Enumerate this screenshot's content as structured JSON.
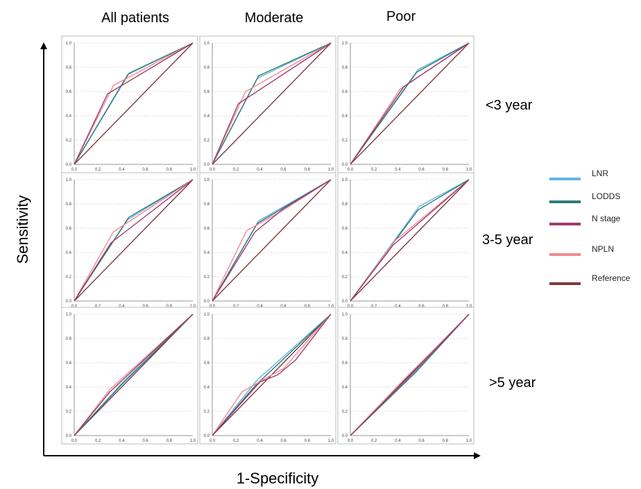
{
  "labels": {
    "col_titles": [
      "All patients",
      "Moderate",
      "Poor"
    ],
    "row_titles": [
      "<3 year",
      "3-5 year",
      ">5 year"
    ],
    "y_axis": "Sensitivity",
    "x_axis": "1-Specificity"
  },
  "colors": {
    "LNR": "#62b3e3",
    "LODDS": "#2e7a78",
    "N stage": "#a03a6d",
    "NPLN": "#f08a8e",
    "Reference": "#7d3a3c",
    "grid": "#cfcfcf",
    "frame": "#bdbdbd",
    "axis": "#000000"
  },
  "chart_data": [
    {
      "type": "line",
      "panel": "All patients, <3 year",
      "xlim": [
        0,
        1
      ],
      "ylim": [
        0,
        1
      ],
      "x_ticks": [
        "0.0",
        "0.2",
        "0.4",
        "0.6",
        "0.8",
        "1.0"
      ],
      "y_ticks": [
        "0.0",
        "0.2",
        "0.4",
        "0.6",
        "0.8",
        "1.0"
      ],
      "series": [
        {
          "name": "LNR",
          "points": [
            [
              0,
              0
            ],
            [
              0.45,
              0.74
            ],
            [
              1,
              1
            ]
          ]
        },
        {
          "name": "LODDS",
          "points": [
            [
              0,
              0
            ],
            [
              0.46,
              0.75
            ],
            [
              1,
              1
            ]
          ]
        },
        {
          "name": "N stage",
          "points": [
            [
              0,
              0
            ],
            [
              0.28,
              0.58
            ],
            [
              1,
              1
            ]
          ]
        },
        {
          "name": "NPLN",
          "points": [
            [
              0,
              0
            ],
            [
              0.33,
              0.65
            ],
            [
              1,
              1
            ]
          ]
        },
        {
          "name": "Reference",
          "points": [
            [
              0,
              0
            ],
            [
              1,
              1
            ]
          ]
        }
      ]
    },
    {
      "type": "line",
      "panel": "Moderate, <3 year",
      "xlim": [
        0,
        1
      ],
      "ylim": [
        0,
        1
      ],
      "x_ticks": [
        "0.0",
        "0.2",
        "0.4",
        "0.6",
        "0.8",
        "1.0"
      ],
      "y_ticks": [
        "0.0",
        "0.2",
        "0.4",
        "0.6",
        "0.8",
        "1.0"
      ],
      "series": [
        {
          "name": "LNR",
          "points": [
            [
              0,
              0
            ],
            [
              0.38,
              0.71
            ],
            [
              1,
              1
            ]
          ]
        },
        {
          "name": "LODDS",
          "points": [
            [
              0,
              0
            ],
            [
              0.39,
              0.73
            ],
            [
              1,
              1
            ]
          ]
        },
        {
          "name": "N stage",
          "points": [
            [
              0,
              0
            ],
            [
              0.22,
              0.5
            ],
            [
              1,
              1
            ]
          ]
        },
        {
          "name": "NPLN",
          "points": [
            [
              0,
              0
            ],
            [
              0.28,
              0.6
            ],
            [
              1,
              1
            ]
          ]
        },
        {
          "name": "Reference",
          "points": [
            [
              0,
              0
            ],
            [
              1,
              1
            ]
          ]
        }
      ]
    },
    {
      "type": "line",
      "panel": "Poor, <3 year",
      "xlim": [
        0,
        1
      ],
      "ylim": [
        0,
        1
      ],
      "x_ticks": [
        "0.0",
        "0.2",
        "0.4",
        "0.6",
        "0.8",
        "1.0"
      ],
      "y_ticks": [
        "0.0",
        "0.2",
        "0.4",
        "0.6",
        "0.8",
        "1.0"
      ],
      "series": [
        {
          "name": "LNR",
          "points": [
            [
              0,
              0
            ],
            [
              0.57,
              0.78
            ],
            [
              1,
              1
            ]
          ]
        },
        {
          "name": "LODDS",
          "points": [
            [
              0,
              0
            ],
            [
              0.56,
              0.76
            ],
            [
              1,
              1
            ]
          ]
        },
        {
          "name": "N stage",
          "points": [
            [
              0,
              0
            ],
            [
              0.45,
              0.64
            ],
            [
              1,
              1
            ]
          ]
        },
        {
          "name": "NPLN",
          "points": [
            [
              0,
              0
            ],
            [
              0.42,
              0.62
            ],
            [
              1,
              1
            ]
          ]
        },
        {
          "name": "Reference",
          "points": [
            [
              0,
              0
            ],
            [
              1,
              1
            ]
          ]
        }
      ]
    },
    {
      "type": "line",
      "panel": "All patients, 3-5 year",
      "xlim": [
        0,
        1
      ],
      "ylim": [
        0,
        1
      ],
      "x_ticks": [
        "0.0",
        "0.2",
        "0.4",
        "0.6",
        "0.8",
        "1.0"
      ],
      "y_ticks": [
        "0.0",
        "0.2",
        "0.4",
        "0.6",
        "0.8",
        "1.0"
      ],
      "series": [
        {
          "name": "LNR",
          "points": [
            [
              0,
              0
            ],
            [
              0.45,
              0.67
            ],
            [
              1,
              1
            ]
          ]
        },
        {
          "name": "LODDS",
          "points": [
            [
              0,
              0
            ],
            [
              0.46,
              0.69
            ],
            [
              1,
              1
            ]
          ]
        },
        {
          "name": "N stage",
          "points": [
            [
              0,
              0
            ],
            [
              0.31,
              0.48
            ],
            [
              1,
              1
            ]
          ]
        },
        {
          "name": "NPLN",
          "points": [
            [
              0,
              0
            ],
            [
              0.33,
              0.57
            ],
            [
              1,
              1
            ]
          ]
        },
        {
          "name": "Reference",
          "points": [
            [
              0,
              0
            ],
            [
              1,
              1
            ]
          ]
        }
      ]
    },
    {
      "type": "line",
      "panel": "Moderate, 3-5 year",
      "xlim": [
        0,
        1
      ],
      "ylim": [
        0,
        1
      ],
      "x_ticks": [
        "0.0",
        "0.2",
        "0.4",
        "0.6",
        "0.8",
        "1.0"
      ],
      "y_ticks": [
        "0.0",
        "0.2",
        "0.4",
        "0.6",
        "0.8",
        "1.0"
      ],
      "series": [
        {
          "name": "LNR",
          "points": [
            [
              0,
              0
            ],
            [
              0.39,
              0.66
            ],
            [
              1,
              1
            ]
          ]
        },
        {
          "name": "LODDS",
          "points": [
            [
              0,
              0
            ],
            [
              0.38,
              0.64
            ],
            [
              1,
              1
            ]
          ]
        },
        {
          "name": "N stage",
          "points": [
            [
              0,
              0
            ],
            [
              0.36,
              0.57
            ],
            [
              0.6,
              0.76
            ],
            [
              1,
              1
            ]
          ]
        },
        {
          "name": "NPLN",
          "points": [
            [
              0,
              0
            ],
            [
              0.29,
              0.58
            ],
            [
              0.6,
              0.75
            ],
            [
              1,
              1
            ]
          ]
        },
        {
          "name": "Reference",
          "points": [
            [
              0,
              0
            ],
            [
              1,
              1
            ]
          ]
        }
      ]
    },
    {
      "type": "line",
      "panel": "Poor, 3-5 year",
      "xlim": [
        0,
        1
      ],
      "ylim": [
        0,
        1
      ],
      "x_ticks": [
        "0.0",
        "0.2",
        "0.4",
        "0.6",
        "0.8",
        "1.0"
      ],
      "y_ticks": [
        "0.0",
        "0.2",
        "0.4",
        "0.6",
        "0.8",
        "1.0"
      ],
      "series": [
        {
          "name": "LNR",
          "points": [
            [
              0,
              0
            ],
            [
              0.58,
              0.78
            ],
            [
              1,
              1
            ]
          ]
        },
        {
          "name": "LODDS",
          "points": [
            [
              0,
              0
            ],
            [
              0.57,
              0.75
            ],
            [
              1,
              1
            ]
          ]
        },
        {
          "name": "N stage",
          "points": [
            [
              0,
              0
            ],
            [
              0.36,
              0.46
            ],
            [
              1,
              1
            ]
          ]
        },
        {
          "name": "NPLN",
          "points": [
            [
              0,
              0
            ],
            [
              0.38,
              0.5
            ],
            [
              1,
              1
            ]
          ]
        },
        {
          "name": "Reference",
          "points": [
            [
              0,
              0
            ],
            [
              1,
              1
            ]
          ]
        }
      ]
    },
    {
      "type": "line",
      "panel": "All patients, >5 year",
      "xlim": [
        0,
        1
      ],
      "ylim": [
        0,
        1
      ],
      "x_ticks": [
        "0.0",
        "0.2",
        "0.4",
        "0.6",
        "0.8",
        "1.0"
      ],
      "y_ticks": [
        "0.0",
        "0.2",
        "0.4",
        "0.6",
        "0.8",
        "1.0"
      ],
      "series": [
        {
          "name": "LNR",
          "points": [
            [
              0,
              0
            ],
            [
              0.42,
              0.45
            ],
            [
              1,
              1
            ]
          ]
        },
        {
          "name": "LODDS",
          "points": [
            [
              0,
              0
            ],
            [
              0.4,
              0.42
            ],
            [
              1,
              1
            ]
          ]
        },
        {
          "name": "N stage",
          "points": [
            [
              0,
              0
            ],
            [
              0.3,
              0.36
            ],
            [
              1,
              1
            ]
          ]
        },
        {
          "name": "NPLN",
          "points": [
            [
              0,
              0
            ],
            [
              0.3,
              0.38
            ],
            [
              1,
              1
            ]
          ]
        },
        {
          "name": "Reference",
          "points": [
            [
              0,
              0
            ],
            [
              1,
              1
            ]
          ]
        }
      ]
    },
    {
      "type": "line",
      "panel": "Moderate, >5 year",
      "xlim": [
        0,
        1
      ],
      "ylim": [
        0,
        1
      ],
      "x_ticks": [
        "0.0",
        "0.2",
        "0.4",
        "0.6",
        "0.8",
        "1.0"
      ],
      "y_ticks": [
        "0.0",
        "0.2",
        "0.4",
        "0.6",
        "0.8",
        "1.0"
      ],
      "series": [
        {
          "name": "LNR",
          "points": [
            [
              0,
              0
            ],
            [
              0.38,
              0.46
            ],
            [
              1,
              1
            ]
          ]
        },
        {
          "name": "LODDS",
          "points": [
            [
              0,
              0
            ],
            [
              0.36,
              0.41
            ],
            [
              1,
              1
            ]
          ]
        },
        {
          "name": "N stage",
          "points": [
            [
              0,
              0
            ],
            [
              0.4,
              0.44
            ],
            [
              0.55,
              0.5
            ],
            [
              0.7,
              0.62
            ],
            [
              1,
              1
            ]
          ]
        },
        {
          "name": "NPLN",
          "points": [
            [
              0,
              0
            ],
            [
              0.25,
              0.36
            ],
            [
              0.5,
              0.5
            ],
            [
              0.6,
              0.55
            ],
            [
              1,
              1
            ]
          ]
        },
        {
          "name": "Reference",
          "points": [
            [
              0,
              0
            ],
            [
              1,
              1
            ]
          ]
        }
      ]
    },
    {
      "type": "line",
      "panel": "Poor, >5 year",
      "xlim": [
        0,
        1
      ],
      "ylim": [
        0,
        1
      ],
      "x_ticks": [
        "0.0",
        "0.2",
        "0.4",
        "0.6",
        "0.8",
        "1.0"
      ],
      "y_ticks": [
        "0.0",
        "0.2",
        "0.4",
        "0.6",
        "0.8",
        "1.0"
      ],
      "series": [
        {
          "name": "LNR",
          "points": [
            [
              0,
              0
            ],
            [
              0.55,
              0.53
            ],
            [
              1,
              1
            ]
          ]
        },
        {
          "name": "LODDS",
          "points": [
            [
              0,
              0
            ],
            [
              0.55,
              0.52
            ],
            [
              1,
              1
            ]
          ]
        },
        {
          "name": "N stage",
          "points": [
            [
              0,
              0
            ],
            [
              0.5,
              0.49
            ],
            [
              1,
              1
            ]
          ]
        },
        {
          "name": "NPLN",
          "points": [
            [
              0,
              0
            ],
            [
              0.45,
              0.46
            ],
            [
              1,
              1
            ]
          ]
        },
        {
          "name": "Reference",
          "points": [
            [
              0,
              0
            ],
            [
              1,
              1
            ]
          ]
        }
      ]
    }
  ],
  "legend": {
    "placement": "right",
    "items": [
      "LNR",
      "LODDS",
      "N stage",
      "NPLN",
      "Reference"
    ]
  }
}
